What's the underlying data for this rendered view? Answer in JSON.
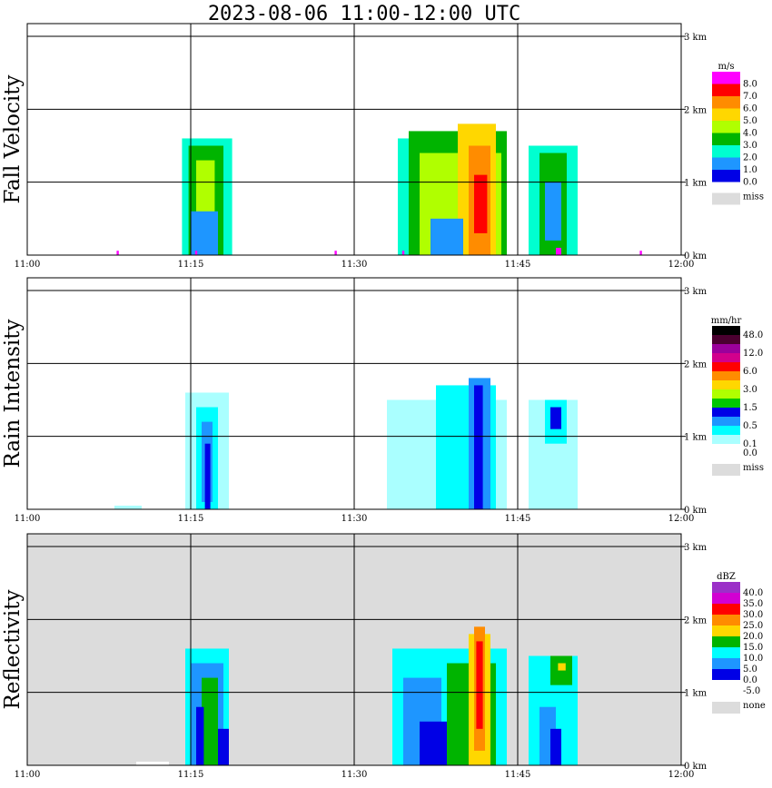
{
  "chart_data": {
    "type": "heatmap",
    "title": "2023-08-06   11:00-12:00 UTC",
    "time_ticks": [
      "11:00",
      "11:15",
      "11:30",
      "11:45",
      "12:00"
    ],
    "height_ticks": [
      "0 km",
      "1 km",
      "2 km",
      "3 km"
    ],
    "time_range_min": [
      0,
      60
    ],
    "height_range_km": [
      0,
      3.2
    ],
    "panels": [
      {
        "id": "fall-velocity",
        "ylabel": "Fall Velocity",
        "unit": "m/s",
        "background": "#ffffff",
        "colorbar": [
          {
            "label": "8.0",
            "color": "#ff00ff"
          },
          {
            "label": "7.0",
            "color": "#ff0000"
          },
          {
            "label": "6.0",
            "color": "#ff8c00"
          },
          {
            "label": "5.0",
            "color": "#ffd700"
          },
          {
            "label": "4.0",
            "color": "#b0ff00"
          },
          {
            "label": "3.0",
            "color": "#00b400"
          },
          {
            "label": "2.0",
            "color": "#00ffd0"
          },
          {
            "label": "1.0",
            "color": "#1e96ff"
          },
          {
            "label": "0.0",
            "color": "#0000e6"
          }
        ],
        "missing_label": "miss",
        "missing_color": "#dcdcdc",
        "cells": [
          {
            "t": [
              14.2,
              18.8
            ],
            "h": [
              0.0,
              1.6
            ],
            "color": "#00ffd0"
          },
          {
            "t": [
              14.8,
              18.0
            ],
            "h": [
              0.0,
              1.5
            ],
            "color": "#00b400"
          },
          {
            "t": [
              15.5,
              17.2
            ],
            "h": [
              0.3,
              1.3
            ],
            "color": "#b0ff00"
          },
          {
            "t": [
              15.0,
              17.5
            ],
            "h": [
              0.0,
              0.6
            ],
            "color": "#1e96ff"
          },
          {
            "t": [
              34.0,
              40.0
            ],
            "h": [
              0.0,
              1.6
            ],
            "color": "#00ffd0"
          },
          {
            "t": [
              35.0,
              44.0
            ],
            "h": [
              0.0,
              1.7
            ],
            "color": "#00b400"
          },
          {
            "t": [
              36.0,
              43.5
            ],
            "h": [
              0.0,
              1.4
            ],
            "color": "#b0ff00"
          },
          {
            "t": [
              39.5,
              43.0
            ],
            "h": [
              0.0,
              1.8
            ],
            "color": "#ffd700"
          },
          {
            "t": [
              40.5,
              42.5
            ],
            "h": [
              0.0,
              1.5
            ],
            "color": "#ff8c00"
          },
          {
            "t": [
              41.0,
              42.2
            ],
            "h": [
              0.3,
              1.1
            ],
            "color": "#ff0000"
          },
          {
            "t": [
              37.0,
              40.0
            ],
            "h": [
              0.0,
              0.5
            ],
            "color": "#1e96ff"
          },
          {
            "t": [
              46.0,
              50.5
            ],
            "h": [
              0.0,
              1.5
            ],
            "color": "#00ffd0"
          },
          {
            "t": [
              47.0,
              49.5
            ],
            "h": [
              0.0,
              1.4
            ],
            "color": "#00b400"
          },
          {
            "t": [
              47.5,
              49.0
            ],
            "h": [
              0.2,
              1.0
            ],
            "color": "#1e96ff"
          },
          {
            "t": [
              48.5,
              49.0
            ],
            "h": [
              0.0,
              0.1
            ],
            "color": "#ff00ff"
          },
          {
            "t": [
              8.2,
              8.4
            ],
            "h": [
              0.0,
              0.06
            ],
            "color": "#ff00ff"
          },
          {
            "t": [
              15.4,
              15.6
            ],
            "h": [
              0.0,
              0.06
            ],
            "color": "#ff00ff"
          },
          {
            "t": [
              28.2,
              28.4
            ],
            "h": [
              0.0,
              0.06
            ],
            "color": "#ff00ff"
          },
          {
            "t": [
              34.4,
              34.6
            ],
            "h": [
              0.0,
              0.06
            ],
            "color": "#ff00ff"
          },
          {
            "t": [
              56.2,
              56.4
            ],
            "h": [
              0.0,
              0.06
            ],
            "color": "#ff00ff"
          }
        ]
      },
      {
        "id": "rain-intensity",
        "ylabel": "Rain Intensity",
        "unit": "mm/hr",
        "background": "#ffffff",
        "colorbar": [
          {
            "label": "48.0",
            "color": "#000000"
          },
          {
            "label": "",
            "color": "#4b0030"
          },
          {
            "label": "12.0",
            "color": "#9b009b"
          },
          {
            "label": "",
            "color": "#d2008c"
          },
          {
            "label": "6.0",
            "color": "#ff0000"
          },
          {
            "label": "",
            "color": "#ff8c00"
          },
          {
            "label": "3.0",
            "color": "#ffd700"
          },
          {
            "label": "",
            "color": "#b0ff00"
          },
          {
            "label": "1.5",
            "color": "#00c800"
          },
          {
            "label": "",
            "color": "#0000e6"
          },
          {
            "label": "0.5",
            "color": "#1e96ff"
          },
          {
            "label": "",
            "color": "#00ffff"
          },
          {
            "label": "0.1",
            "color": "#aaffff"
          },
          {
            "label": "0.0",
            "color": "#ffffff"
          }
        ],
        "missing_label": "miss",
        "missing_color": "#dcdcdc",
        "cells": [
          {
            "t": [
              14.5,
              18.5
            ],
            "h": [
              0.0,
              1.6
            ],
            "color": "#aaffff"
          },
          {
            "t": [
              15.5,
              17.5
            ],
            "h": [
              0.0,
              1.4
            ],
            "color": "#00ffff"
          },
          {
            "t": [
              16.0,
              17.0
            ],
            "h": [
              0.1,
              1.2
            ],
            "color": "#1e96ff"
          },
          {
            "t": [
              16.3,
              16.8
            ],
            "h": [
              0.0,
              0.9
            ],
            "color": "#0000e6"
          },
          {
            "t": [
              33.0,
              44.0
            ],
            "h": [
              0.0,
              1.5
            ],
            "color": "#aaffff"
          },
          {
            "t": [
              37.5,
              43.0
            ],
            "h": [
              0.0,
              1.7
            ],
            "color": "#00ffff"
          },
          {
            "t": [
              40.5,
              42.5
            ],
            "h": [
              0.0,
              1.8
            ],
            "color": "#1e96ff"
          },
          {
            "t": [
              41.0,
              41.8
            ],
            "h": [
              0.0,
              1.7
            ],
            "color": "#0000e6"
          },
          {
            "t": [
              46.0,
              50.5
            ],
            "h": [
              0.0,
              1.5
            ],
            "color": "#aaffff"
          },
          {
            "t": [
              47.5,
              49.5
            ],
            "h": [
              0.9,
              1.5
            ],
            "color": "#00ffff"
          },
          {
            "t": [
              48.0,
              49.0
            ],
            "h": [
              1.1,
              1.4
            ],
            "color": "#0000e6"
          },
          {
            "t": [
              8.0,
              10.5
            ],
            "h": [
              0.0,
              0.05
            ],
            "color": "#aaffff"
          }
        ]
      },
      {
        "id": "reflectivity",
        "ylabel": "Reflectivity",
        "unit": "dBZ",
        "background": "#dcdcdc",
        "colorbar": [
          {
            "label": "40.0",
            "color": "#9b30c8"
          },
          {
            "label": "35.0",
            "color": "#d200d2"
          },
          {
            "label": "30.0",
            "color": "#ff0000"
          },
          {
            "label": "25.0",
            "color": "#ff8c00"
          },
          {
            "label": "20.0",
            "color": "#ffd700"
          },
          {
            "label": "15.0",
            "color": "#00b400"
          },
          {
            "label": "10.0",
            "color": "#00ffff"
          },
          {
            "label": "5.0",
            "color": "#1e96ff"
          },
          {
            "label": "0.0",
            "color": "#0000e6"
          },
          {
            "label": "-5.0",
            "color": "#ffffff"
          }
        ],
        "missing_label": "none",
        "missing_color": "#dcdcdc",
        "cells": [
          {
            "t": [
              14.5,
              18.5
            ],
            "h": [
              0.0,
              1.6
            ],
            "color": "#00ffff"
          },
          {
            "t": [
              15.0,
              18.0
            ],
            "h": [
              0.0,
              1.4
            ],
            "color": "#1e96ff"
          },
          {
            "t": [
              16.0,
              17.5
            ],
            "h": [
              0.0,
              1.2
            ],
            "color": "#00b400"
          },
          {
            "t": [
              15.5,
              16.2
            ],
            "h": [
              0.0,
              0.8
            ],
            "color": "#0000e6"
          },
          {
            "t": [
              17.5,
              18.5
            ],
            "h": [
              0.0,
              0.5
            ],
            "color": "#0000e6"
          },
          {
            "t": [
              33.5,
              44.0
            ],
            "h": [
              0.0,
              1.6
            ],
            "color": "#00ffff"
          },
          {
            "t": [
              34.5,
              38.0
            ],
            "h": [
              0.0,
              1.2
            ],
            "color": "#1e96ff"
          },
          {
            "t": [
              36.0,
              39.0
            ],
            "h": [
              0.0,
              0.6
            ],
            "color": "#0000e6"
          },
          {
            "t": [
              38.5,
              43.0
            ],
            "h": [
              0.0,
              1.4
            ],
            "color": "#00b400"
          },
          {
            "t": [
              40.5,
              42.5
            ],
            "h": [
              0.0,
              1.8
            ],
            "color": "#ffd700"
          },
          {
            "t": [
              41.0,
              42.0
            ],
            "h": [
              0.2,
              1.9
            ],
            "color": "#ff8c00"
          },
          {
            "t": [
              41.2,
              41.8
            ],
            "h": [
              0.5,
              1.7
            ],
            "color": "#ff0000"
          },
          {
            "t": [
              46.0,
              50.5
            ],
            "h": [
              0.0,
              1.5
            ],
            "color": "#00ffff"
          },
          {
            "t": [
              47.0,
              48.5
            ],
            "h": [
              0.0,
              0.8
            ],
            "color": "#1e96ff"
          },
          {
            "t": [
              48.0,
              49.0
            ],
            "h": [
              0.0,
              0.5
            ],
            "color": "#0000e6"
          },
          {
            "t": [
              48.0,
              50.0
            ],
            "h": [
              1.1,
              1.5
            ],
            "color": "#00b400"
          },
          {
            "t": [
              48.7,
              49.4
            ],
            "h": [
              1.3,
              1.4
            ],
            "color": "#ffd700"
          },
          {
            "t": [
              10.0,
              13.0
            ],
            "h": [
              0.0,
              0.05
            ],
            "color": "#ffffff"
          }
        ]
      }
    ]
  }
}
